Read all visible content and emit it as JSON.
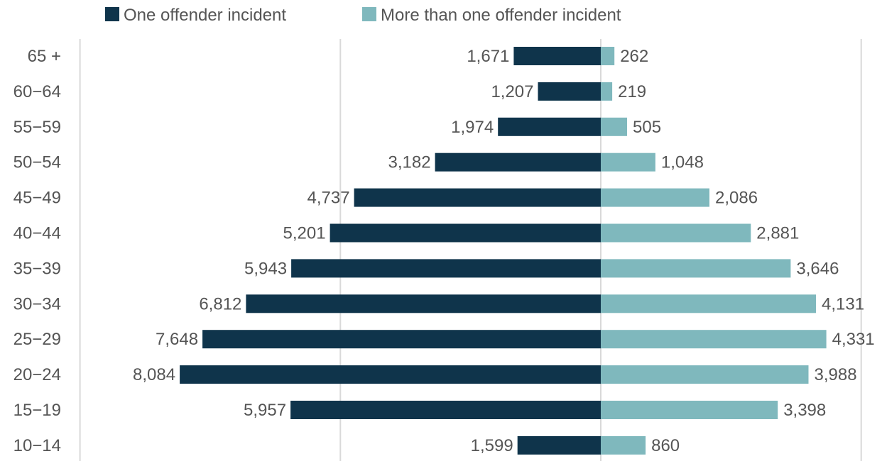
{
  "chart_data": {
    "type": "bar",
    "orientation": "horizontal-diverging",
    "categories": [
      "65 +",
      "60−64",
      "55−59",
      "50−54",
      "45−49",
      "40−44",
      "35−39",
      "30−34",
      "25−29",
      "20−24",
      "15−19",
      "10−14"
    ],
    "series": [
      {
        "name": "One offender incident",
        "color": "#0f344b",
        "direction": "left",
        "values": [
          1671,
          1207,
          1974,
          3182,
          4737,
          5201,
          5943,
          6812,
          7648,
          8084,
          5957,
          1599
        ],
        "labels": [
          "1,671",
          "1,207",
          "1,974",
          "3,182",
          "4,737",
          "5,201",
          "5,943",
          "6,812",
          "7,648",
          "8,084",
          "5,957",
          "1,599"
        ]
      },
      {
        "name": "More than one offender incident",
        "color": "#7fb8bd",
        "direction": "right",
        "values": [
          262,
          219,
          505,
          1048,
          2086,
          2881,
          3646,
          4131,
          4331,
          3988,
          3398,
          860
        ],
        "labels": [
          "262",
          "219",
          "505",
          "1,048",
          "2,086",
          "2,881",
          "3,646",
          "4,131",
          "4,331",
          "3,988",
          "3,398",
          "860"
        ]
      }
    ],
    "xlim": [
      -10000,
      5000
    ],
    "grid": "vertical",
    "legend_position": "top-left"
  }
}
